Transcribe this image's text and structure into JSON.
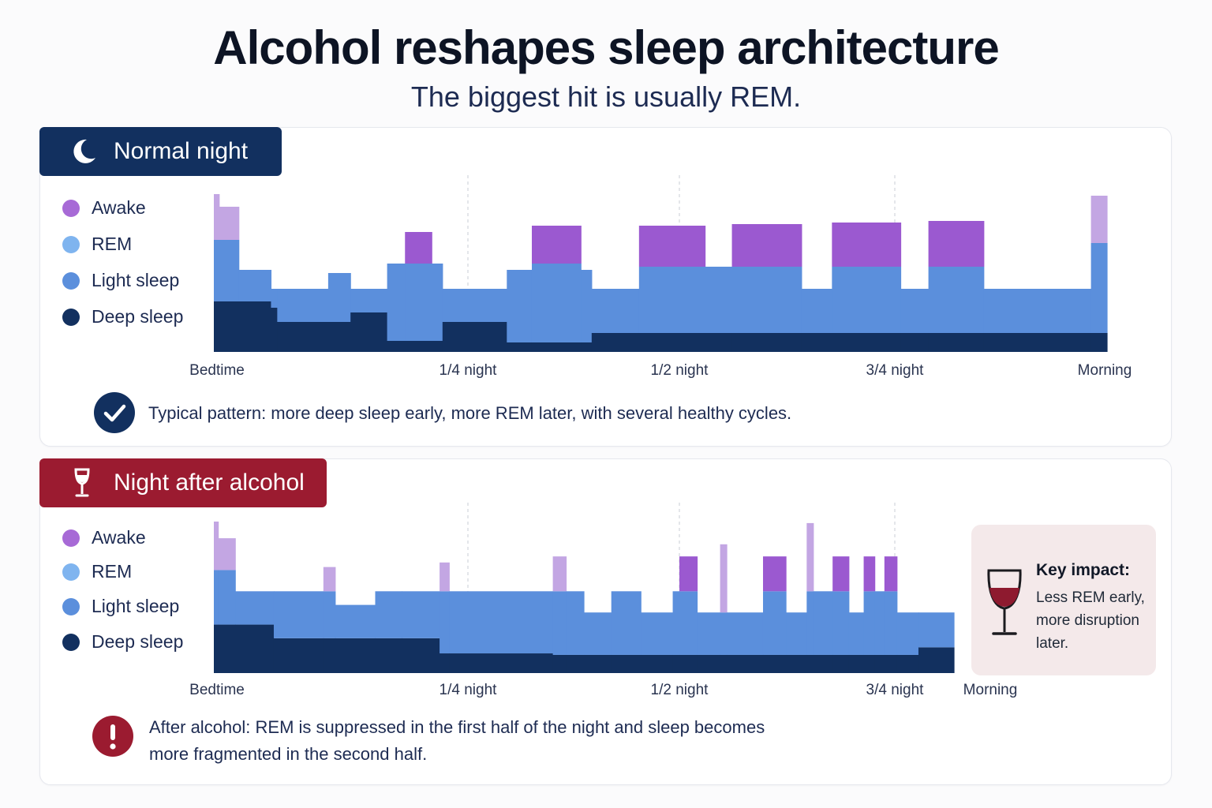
{
  "header": {
    "title": "Alcohol reshapes sleep architecture",
    "subtitle": "The biggest hit is usually REM."
  },
  "colors": {
    "awake": "#9b59d0",
    "awake_light": "#c3a6e3",
    "rem": "#6aa5ec",
    "light_sleep": "#5b8fdc",
    "deep_sleep": "#12305f",
    "normal_tab": "#12305f",
    "alcohol_tab": "#9b1b30"
  },
  "legend": {
    "awake": "Awake",
    "rem": "REM",
    "light_sleep": "Light sleep",
    "deep_sleep": "Deep sleep"
  },
  "panels": {
    "normal": {
      "tab_label": "Normal night",
      "icon": "moon-icon",
      "note": "Typical pattern: more deep sleep early, more REM later, with several healthy cycles.",
      "note_icon": "checkmark-icon",
      "x_ticks": [
        "Bedtime",
        "1/4 night",
        "1/2 night",
        "3/4 night",
        "Morning"
      ]
    },
    "alcohol": {
      "tab_label": "Night after alcohol",
      "icon": "wine-glass-icon",
      "note_line1": "After alcohol: REM is suppressed in the first half of the night and sleep becomes",
      "note_line2": "more fragmented in the second half.",
      "note_icon": "exclamation-icon",
      "x_ticks": [
        "Bedtime",
        "1/4 night",
        "1/2 night",
        "3/4 night",
        "Morning"
      ],
      "impact_title": "Key impact:",
      "impact_text": "Less REM early, more disruption later."
    }
  },
  "chart_data": [
    {
      "type": "area",
      "name": "Normal night",
      "x_unit": "fraction of night",
      "xlim": [
        0,
        1
      ],
      "ylim": [
        0,
        1
      ],
      "x_ticks": [
        {
          "x": 0,
          "label": "Bedtime"
        },
        {
          "x": 0.28,
          "label": "1/4 night"
        },
        {
          "x": 0.52,
          "label": "1/2 night"
        },
        {
          "x": 0.76,
          "label": "3/4 night"
        },
        {
          "x": 1.0,
          "label": "Morning"
        }
      ],
      "segments": [
        {
          "x0": 0.0,
          "x1": 0.006,
          "deep": 0.32,
          "light": 0.39,
          "awake": 0.29,
          "awake_style": "light"
        },
        {
          "x0": 0.006,
          "x1": 0.028,
          "deep": 0.32,
          "light": 0.39,
          "awake": 0.21,
          "awake_style": "light"
        },
        {
          "x0": 0.028,
          "x1": 0.064,
          "deep": 0.32,
          "light": 0.2,
          "awake": 0
        },
        {
          "x0": 0.064,
          "x1": 0.071,
          "deep": 0.28,
          "light": 0.12,
          "awake": 0
        },
        {
          "x0": 0.071,
          "x1": 0.128,
          "deep": 0.19,
          "light": 0.21,
          "awake": 0
        },
        {
          "x0": 0.128,
          "x1": 0.153,
          "deep": 0.19,
          "light": 0.31,
          "awake": 0
        },
        {
          "x0": 0.153,
          "x1": 0.153,
          "deep": 0.19,
          "light": 0.21,
          "awake": 0
        },
        {
          "x0": 0.153,
          "x1": 0.194,
          "deep": 0.25,
          "light": 0.15,
          "awake": 0
        },
        {
          "x0": 0.194,
          "x1": 0.214,
          "deep": 0.07,
          "light": 0.49,
          "awake": 0
        },
        {
          "x0": 0.214,
          "x1": 0.244,
          "deep": 0.07,
          "light": 0.49,
          "awake": 0.2,
          "awake_style": "strong"
        },
        {
          "x0": 0.244,
          "x1": 0.256,
          "deep": 0.07,
          "light": 0.49,
          "awake": 0
        },
        {
          "x0": 0.256,
          "x1": 0.328,
          "deep": 0.19,
          "light": 0.21,
          "awake": 0
        },
        {
          "x0": 0.328,
          "x1": 0.356,
          "deep": 0.06,
          "light": 0.46,
          "awake": 0
        },
        {
          "x0": 0.356,
          "x1": 0.411,
          "deep": 0.06,
          "light": 0.5,
          "awake": 0.24,
          "awake_style": "strong"
        },
        {
          "x0": 0.411,
          "x1": 0.423,
          "deep": 0.06,
          "light": 0.46,
          "awake": 0
        },
        {
          "x0": 0.423,
          "x1": 0.476,
          "deep": 0.12,
          "light": 0.28,
          "awake": 0
        },
        {
          "x0": 0.476,
          "x1": 0.55,
          "deep": 0.12,
          "light": 0.42,
          "awake": 0.26,
          "awake_style": "strong"
        },
        {
          "x0": 0.55,
          "x1": 0.58,
          "deep": 0.12,
          "light": 0.42,
          "awake": 0
        },
        {
          "x0": 0.58,
          "x1": 0.658,
          "deep": 0.12,
          "light": 0.42,
          "awake": 0.27,
          "awake_style": "strong"
        },
        {
          "x0": 0.658,
          "x1": 0.692,
          "deep": 0.12,
          "light": 0.28,
          "awake": 0
        },
        {
          "x0": 0.692,
          "x1": 0.769,
          "deep": 0.12,
          "light": 0.42,
          "awake": 0.28,
          "awake_style": "strong"
        },
        {
          "x0": 0.769,
          "x1": 0.8,
          "deep": 0.12,
          "light": 0.28,
          "awake": 0
        },
        {
          "x0": 0.8,
          "x1": 0.862,
          "deep": 0.12,
          "light": 0.42,
          "awake": 0.29,
          "awake_style": "strong"
        },
        {
          "x0": 0.862,
          "x1": 0.982,
          "deep": 0.12,
          "light": 0.28,
          "awake": 0
        },
        {
          "x0": 0.982,
          "x1": 1.0,
          "deep": 0.12,
          "light": 0.57,
          "awake": 0.3,
          "awake_style": "light"
        }
      ]
    },
    {
      "type": "area",
      "name": "Night after alcohol",
      "x_unit": "fraction of night",
      "xlim": [
        0,
        1
      ],
      "ylim": [
        0,
        1
      ],
      "x_ticks": [
        {
          "x": 0,
          "label": "Bedtime"
        },
        {
          "x": 0.34,
          "label": "1/4 night"
        },
        {
          "x": 0.63,
          "label": "1/2 night"
        },
        {
          "x": 0.92,
          "label": "3/4 night"
        },
        {
          "x": 1.0,
          "label": "Morning"
        }
      ],
      "segments": [
        {
          "x0": 0.0,
          "x1": 0.006,
          "deep": 0.32,
          "light": 0.36,
          "awake": 0.32,
          "awake_style": "light"
        },
        {
          "x0": 0.006,
          "x1": 0.029,
          "deep": 0.32,
          "light": 0.36,
          "awake": 0.21,
          "awake_style": "light"
        },
        {
          "x0": 0.029,
          "x1": 0.081,
          "deep": 0.32,
          "light": 0.22,
          "awake": 0
        },
        {
          "x0": 0.081,
          "x1": 0.148,
          "deep": 0.23,
          "light": 0.31,
          "awake": 0
        },
        {
          "x0": 0.148,
          "x1": 0.164,
          "deep": 0.23,
          "light": 0.31,
          "awake": 0.16,
          "awake_style": "light"
        },
        {
          "x0": 0.164,
          "x1": 0.218,
          "deep": 0.23,
          "light": 0.22,
          "awake": 0
        },
        {
          "x0": 0.218,
          "x1": 0.254,
          "deep": 0.23,
          "light": 0.31,
          "awake": 0
        },
        {
          "x0": 0.254,
          "x1": 0.305,
          "deep": 0.23,
          "light": 0.31,
          "awake": 0
        },
        {
          "x0": 0.305,
          "x1": 0.318,
          "deep": 0.13,
          "light": 0.41,
          "awake": 0.19,
          "awake_style": "light"
        },
        {
          "x0": 0.318,
          "x1": 0.458,
          "deep": 0.13,
          "light": 0.41,
          "awake": 0
        },
        {
          "x0": 0.458,
          "x1": 0.476,
          "deep": 0.12,
          "light": 0.42,
          "awake": 0.23,
          "awake_style": "light"
        },
        {
          "x0": 0.476,
          "x1": 0.5,
          "deep": 0.12,
          "light": 0.42,
          "awake": 0
        },
        {
          "x0": 0.5,
          "x1": 0.537,
          "deep": 0.12,
          "light": 0.28,
          "awake": 0
        },
        {
          "x0": 0.537,
          "x1": 0.577,
          "deep": 0.12,
          "light": 0.42,
          "awake": 0
        },
        {
          "x0": 0.577,
          "x1": 0.62,
          "deep": 0.12,
          "light": 0.28,
          "awake": 0
        },
        {
          "x0": 0.62,
          "x1": 0.629,
          "deep": 0.12,
          "light": 0.42,
          "awake": 0
        },
        {
          "x0": 0.629,
          "x1": 0.653,
          "deep": 0.12,
          "light": 0.42,
          "awake": 0.23,
          "awake_style": "strong"
        },
        {
          "x0": 0.653,
          "x1": 0.684,
          "deep": 0.12,
          "light": 0.28,
          "awake": 0
        },
        {
          "x0": 0.684,
          "x1": 0.693,
          "deep": 0.12,
          "light": 0.28,
          "awake": 0.45,
          "awake_style": "light"
        },
        {
          "x0": 0.693,
          "x1": 0.742,
          "deep": 0.12,
          "light": 0.28,
          "awake": 0
        },
        {
          "x0": 0.742,
          "x1": 0.773,
          "deep": 0.12,
          "light": 0.42,
          "awake": 0.23,
          "awake_style": "strong"
        },
        {
          "x0": 0.773,
          "x1": 0.801,
          "deep": 0.12,
          "light": 0.28,
          "awake": 0
        },
        {
          "x0": 0.801,
          "x1": 0.81,
          "deep": 0.12,
          "light": 0.42,
          "awake": 0.45,
          "awake_style": "light"
        },
        {
          "x0": 0.81,
          "x1": 0.836,
          "deep": 0.12,
          "light": 0.42,
          "awake": 0
        },
        {
          "x0": 0.836,
          "x1": 0.858,
          "deep": 0.12,
          "light": 0.42,
          "awake": 0.23,
          "awake_style": "strong"
        },
        {
          "x0": 0.858,
          "x1": 0.878,
          "deep": 0.12,
          "light": 0.28,
          "awake": 0
        },
        {
          "x0": 0.878,
          "x1": 0.893,
          "deep": 0.12,
          "light": 0.42,
          "awake": 0.23,
          "awake_style": "strong"
        },
        {
          "x0": 0.893,
          "x1": 0.906,
          "deep": 0.12,
          "light": 0.42,
          "awake": 0
        },
        {
          "x0": 0.906,
          "x1": 0.923,
          "deep": 0.12,
          "light": 0.42,
          "awake": 0.23,
          "awake_style": "strong"
        },
        {
          "x0": 0.923,
          "x1": 0.952,
          "deep": 0.12,
          "light": 0.28,
          "awake": 0
        },
        {
          "x0": 0.952,
          "x1": 1.0,
          "deep": 0.17,
          "light": 0.23,
          "awake": 0
        }
      ]
    }
  ]
}
